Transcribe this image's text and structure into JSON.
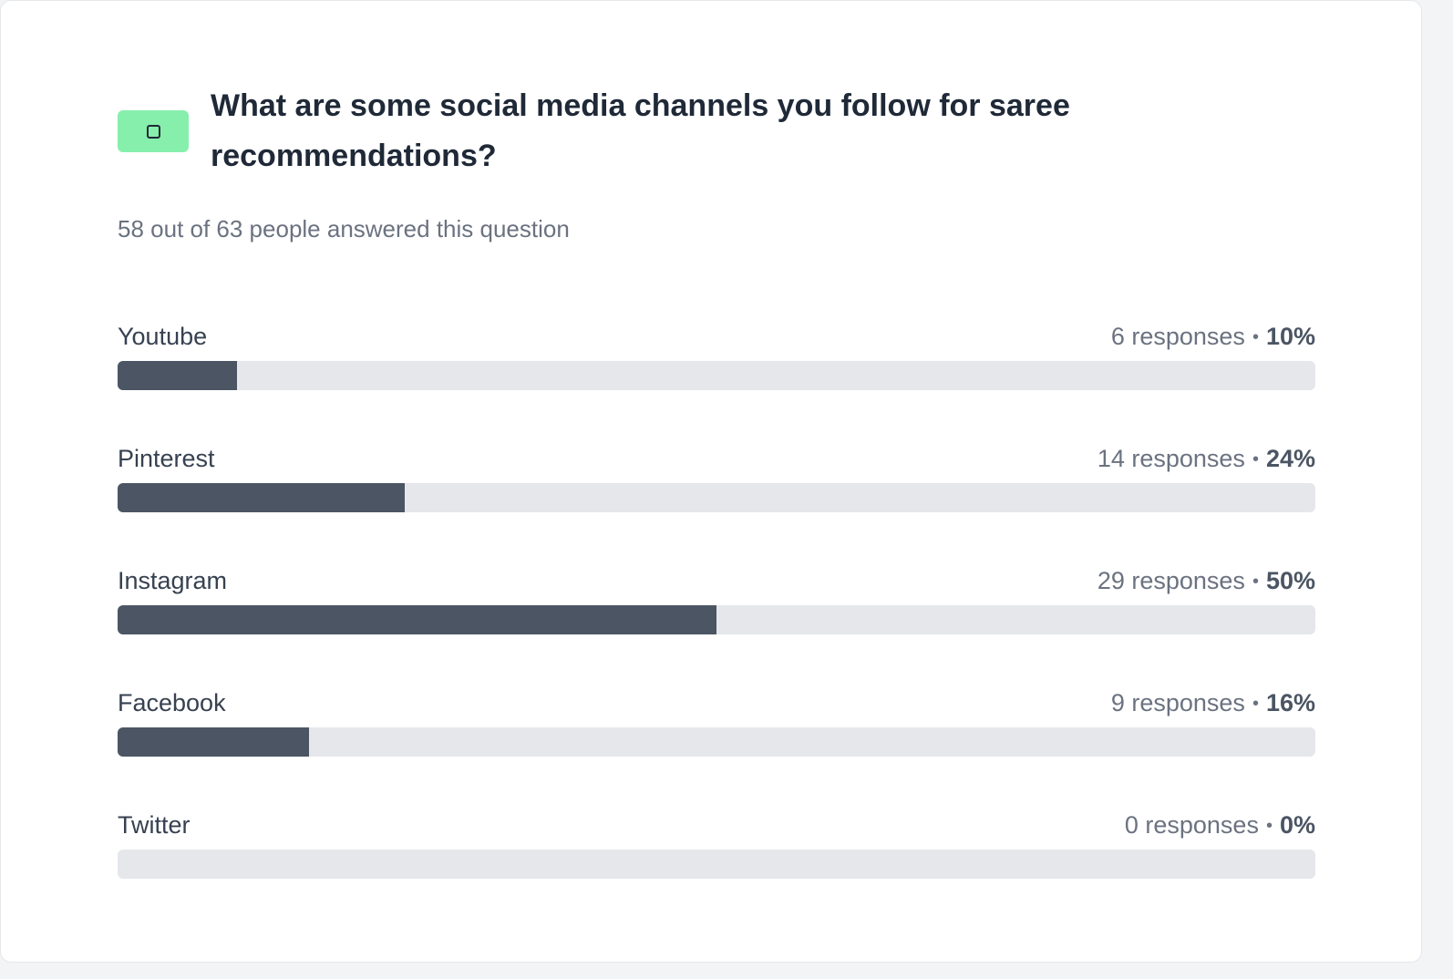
{
  "question": {
    "type_icon": "checkbox-icon",
    "title": "What are some social media channels you follow for saree recommendations?",
    "summary": "58 out of 63 people answered this question"
  },
  "colors": {
    "badge": "#86efac",
    "bar_fill": "#4b5563",
    "bar_track": "#e5e7eb"
  },
  "options": [
    {
      "label": "Youtube",
      "responses_text": "6 responses",
      "separator": "•",
      "percent_text": "10%",
      "percent": 10
    },
    {
      "label": "Pinterest",
      "responses_text": "14 responses",
      "separator": "•",
      "percent_text": "24%",
      "percent": 24
    },
    {
      "label": "Instagram",
      "responses_text": "29 responses",
      "separator": "•",
      "percent_text": "50%",
      "percent": 50
    },
    {
      "label": "Facebook",
      "responses_text": "9 responses",
      "separator": "•",
      "percent_text": "16%",
      "percent": 16
    },
    {
      "label": "Twitter",
      "responses_text": "0 responses",
      "separator": "•",
      "percent_text": "0%",
      "percent": 0
    }
  ]
}
